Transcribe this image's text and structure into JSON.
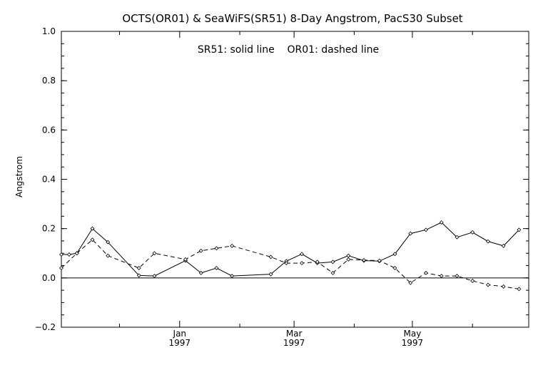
{
  "chart_data": {
    "type": "line",
    "title": "OCTS(OR01) & SeaWiFS(SR51) 8-Day Angstrom, PacS30 Subset",
    "legend_text": "SR51: solid line    OR01: dashed line",
    "legend_placement": "top-center",
    "xlabel": "",
    "ylabel": "Angstrom",
    "ylim": [
      -0.2,
      1.0
    ],
    "yticks": [
      1.0,
      0.8,
      0.6,
      0.4,
      0.2,
      0.0,
      -0.2
    ],
    "ytick_labels": [
      "1.0",
      "0.8",
      "0.6",
      "0.4",
      "0.2",
      "0.0",
      "−0.2"
    ],
    "xlim": [
      "1996-11-01",
      "1997-06-30"
    ],
    "x_major_ticks": [
      {
        "date": "1997-01-01",
        "month": "Jan",
        "year": "1997"
      },
      {
        "date": "1997-03-01",
        "month": "Mar",
        "year": "1997"
      },
      {
        "date": "1997-05-01",
        "month": "May",
        "year": "1997"
      }
    ],
    "x_minor_ticks": [
      "1996-12-01",
      "1997-02-01",
      "1997-04-01",
      "1997-06-01"
    ],
    "zero_line": true,
    "grid": false,
    "series": [
      {
        "style": "solid",
        "points": [
          {
            "x": "1996-11-01",
            "y": 0.095
          },
          {
            "x": "1996-11-05",
            "y": 0.095
          },
          {
            "x": "1996-11-09",
            "y": 0.1
          },
          {
            "x": "1996-11-17",
            "y": 0.2
          },
          {
            "x": "1996-11-25",
            "y": 0.145
          },
          {
            "x": "1996-12-11",
            "y": 0.01
          },
          {
            "x": "1996-12-19",
            "y": 0.008
          },
          {
            "x": "1997-01-04",
            "y": 0.07
          },
          {
            "x": "1997-01-12",
            "y": 0.02
          },
          {
            "x": "1997-01-20",
            "y": 0.04
          },
          {
            "x": "1997-01-28",
            "y": 0.008
          },
          {
            "x": "1997-02-17",
            "y": 0.015
          },
          {
            "x": "1997-02-25",
            "y": 0.068
          },
          {
            "x": "1997-03-05",
            "y": 0.097
          },
          {
            "x": "1997-03-13",
            "y": 0.06
          },
          {
            "x": "1997-03-21",
            "y": 0.065
          },
          {
            "x": "1997-03-29",
            "y": 0.09
          },
          {
            "x": "1997-04-06",
            "y": 0.07
          },
          {
            "x": "1997-04-14",
            "y": 0.068
          },
          {
            "x": "1997-04-22",
            "y": 0.097
          },
          {
            "x": "1997-04-30",
            "y": 0.18
          },
          {
            "x": "1997-05-08",
            "y": 0.195
          },
          {
            "x": "1997-05-16",
            "y": 0.225
          },
          {
            "x": "1997-05-24",
            "y": 0.165
          },
          {
            "x": "1997-06-01",
            "y": 0.185
          },
          {
            "x": "1997-06-09",
            "y": 0.148
          },
          {
            "x": "1997-06-17",
            "y": 0.13
          },
          {
            "x": "1997-06-25",
            "y": 0.195
          }
        ]
      },
      {
        "style": "dashed",
        "points": [
          {
            "x": "1996-11-01",
            "y": 0.04
          },
          {
            "x": "1996-11-09",
            "y": 0.1
          },
          {
            "x": "1996-11-17",
            "y": 0.155
          },
          {
            "x": "1996-11-25",
            "y": 0.09
          },
          {
            "x": "1996-12-11",
            "y": 0.04
          },
          {
            "x": "1996-12-19",
            "y": 0.1
          },
          {
            "x": "1997-01-04",
            "y": 0.075
          },
          {
            "x": "1997-01-12",
            "y": 0.11
          },
          {
            "x": "1997-01-20",
            "y": 0.12
          },
          {
            "x": "1997-01-28",
            "y": 0.13
          },
          {
            "x": "1997-02-17",
            "y": 0.085
          },
          {
            "x": "1997-02-25",
            "y": 0.06
          },
          {
            "x": "1997-03-05",
            "y": 0.06
          },
          {
            "x": "1997-03-13",
            "y": 0.065
          },
          {
            "x": "1997-03-21",
            "y": 0.02
          },
          {
            "x": "1997-03-29",
            "y": 0.075
          },
          {
            "x": "1997-04-06",
            "y": 0.072
          },
          {
            "x": "1997-04-14",
            "y": 0.07
          },
          {
            "x": "1997-04-22",
            "y": 0.04
          },
          {
            "x": "1997-04-30",
            "y": -0.02
          },
          {
            "x": "1997-05-08",
            "y": 0.02
          },
          {
            "x": "1997-05-16",
            "y": 0.008
          },
          {
            "x": "1997-05-24",
            "y": 0.008
          },
          {
            "x": "1997-06-01",
            "y": -0.012
          },
          {
            "x": "1997-06-09",
            "y": -0.028
          },
          {
            "x": "1997-06-17",
            "y": -0.035
          },
          {
            "x": "1997-06-25",
            "y": -0.045
          }
        ]
      }
    ]
  }
}
